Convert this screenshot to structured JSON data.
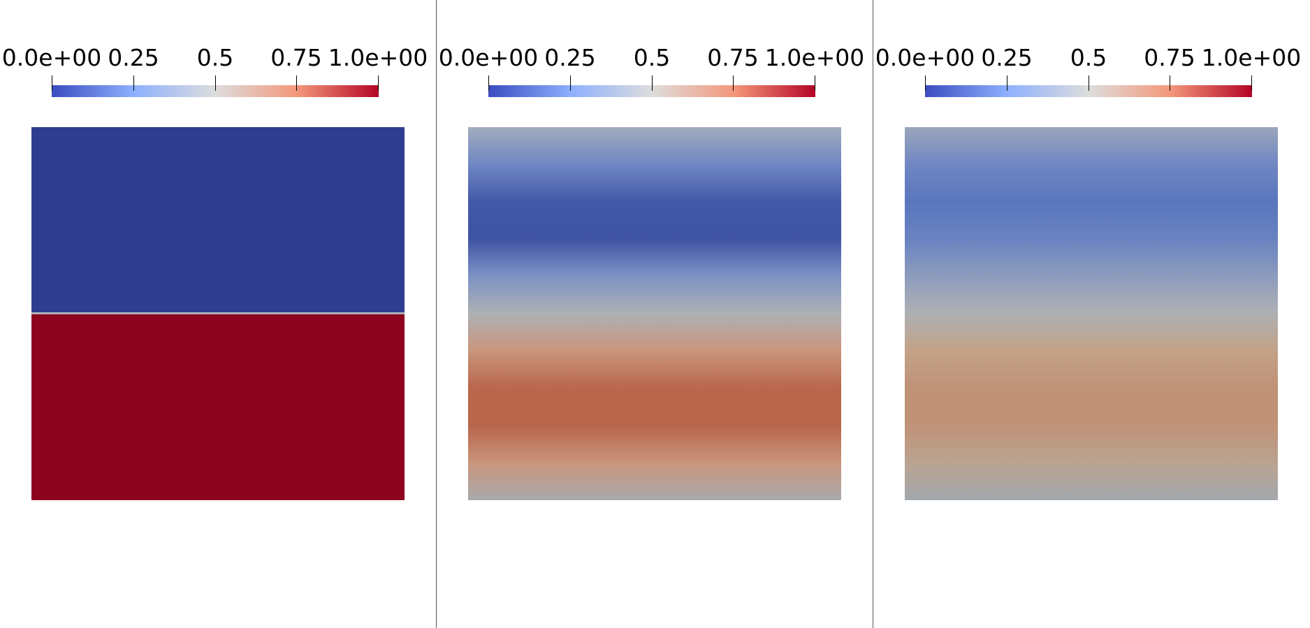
{
  "colormap": {
    "name": "Cool to Warm",
    "stops": [
      "#3b4cc0",
      "#8db0fe",
      "#dddddd",
      "#f4987a",
      "#b40426"
    ]
  },
  "views": [
    {
      "colorbar": {
        "range": [
          0,
          1
        ],
        "ticks": [
          {
            "value": 0.0,
            "label": "0.0e+00"
          },
          {
            "value": 0.25,
            "label": "0.25"
          },
          {
            "value": 0.5,
            "label": "0.5"
          },
          {
            "value": 0.75,
            "label": "0.75"
          },
          {
            "value": 1.0,
            "label": "1.0e+00"
          }
        ]
      },
      "field_colors": [
        "#2f3c8f",
        "#2f3c8f",
        "#2f3c8f",
        "#2f3c8f",
        "#2f3c8f",
        "#b0b0b8",
        "#8d041e",
        "#8d041e",
        "#8d041e",
        "#8d041e",
        "#8d041e"
      ]
    },
    {
      "colorbar": {
        "range": [
          0,
          1
        ],
        "ticks": [
          {
            "value": 0.0,
            "label": "0.0e+00"
          },
          {
            "value": 0.25,
            "label": "0.25"
          },
          {
            "value": 0.5,
            "label": "0.5"
          },
          {
            "value": 0.75,
            "label": "0.75"
          },
          {
            "value": 1.0,
            "label": "1.0e+00"
          }
        ]
      },
      "field_colors": [
        "#a3acbe",
        "#6f87c3",
        "#4358a8",
        "#3f53a5",
        "#7d93c4",
        "#aeb0b3",
        "#c9957c",
        "#b9664c",
        "#b9664c",
        "#c9957c",
        "#a9aaad"
      ]
    },
    {
      "colorbar": {
        "range": [
          0,
          1
        ],
        "ticks": [
          {
            "value": 0.0,
            "label": "0.0e+00"
          },
          {
            "value": 0.25,
            "label": "0.25"
          },
          {
            "value": 0.5,
            "label": "0.5"
          },
          {
            "value": 0.75,
            "label": "0.75"
          },
          {
            "value": 1.0,
            "label": "1.0e+00"
          }
        ]
      },
      "field_colors": [
        "#9ba6bc",
        "#6f86c2",
        "#5a76be",
        "#6983c1",
        "#8d9cbd",
        "#aeb0b2",
        "#c3a288",
        "#c09277",
        "#c09277",
        "#baa391",
        "#a3a8ad"
      ]
    }
  ]
}
